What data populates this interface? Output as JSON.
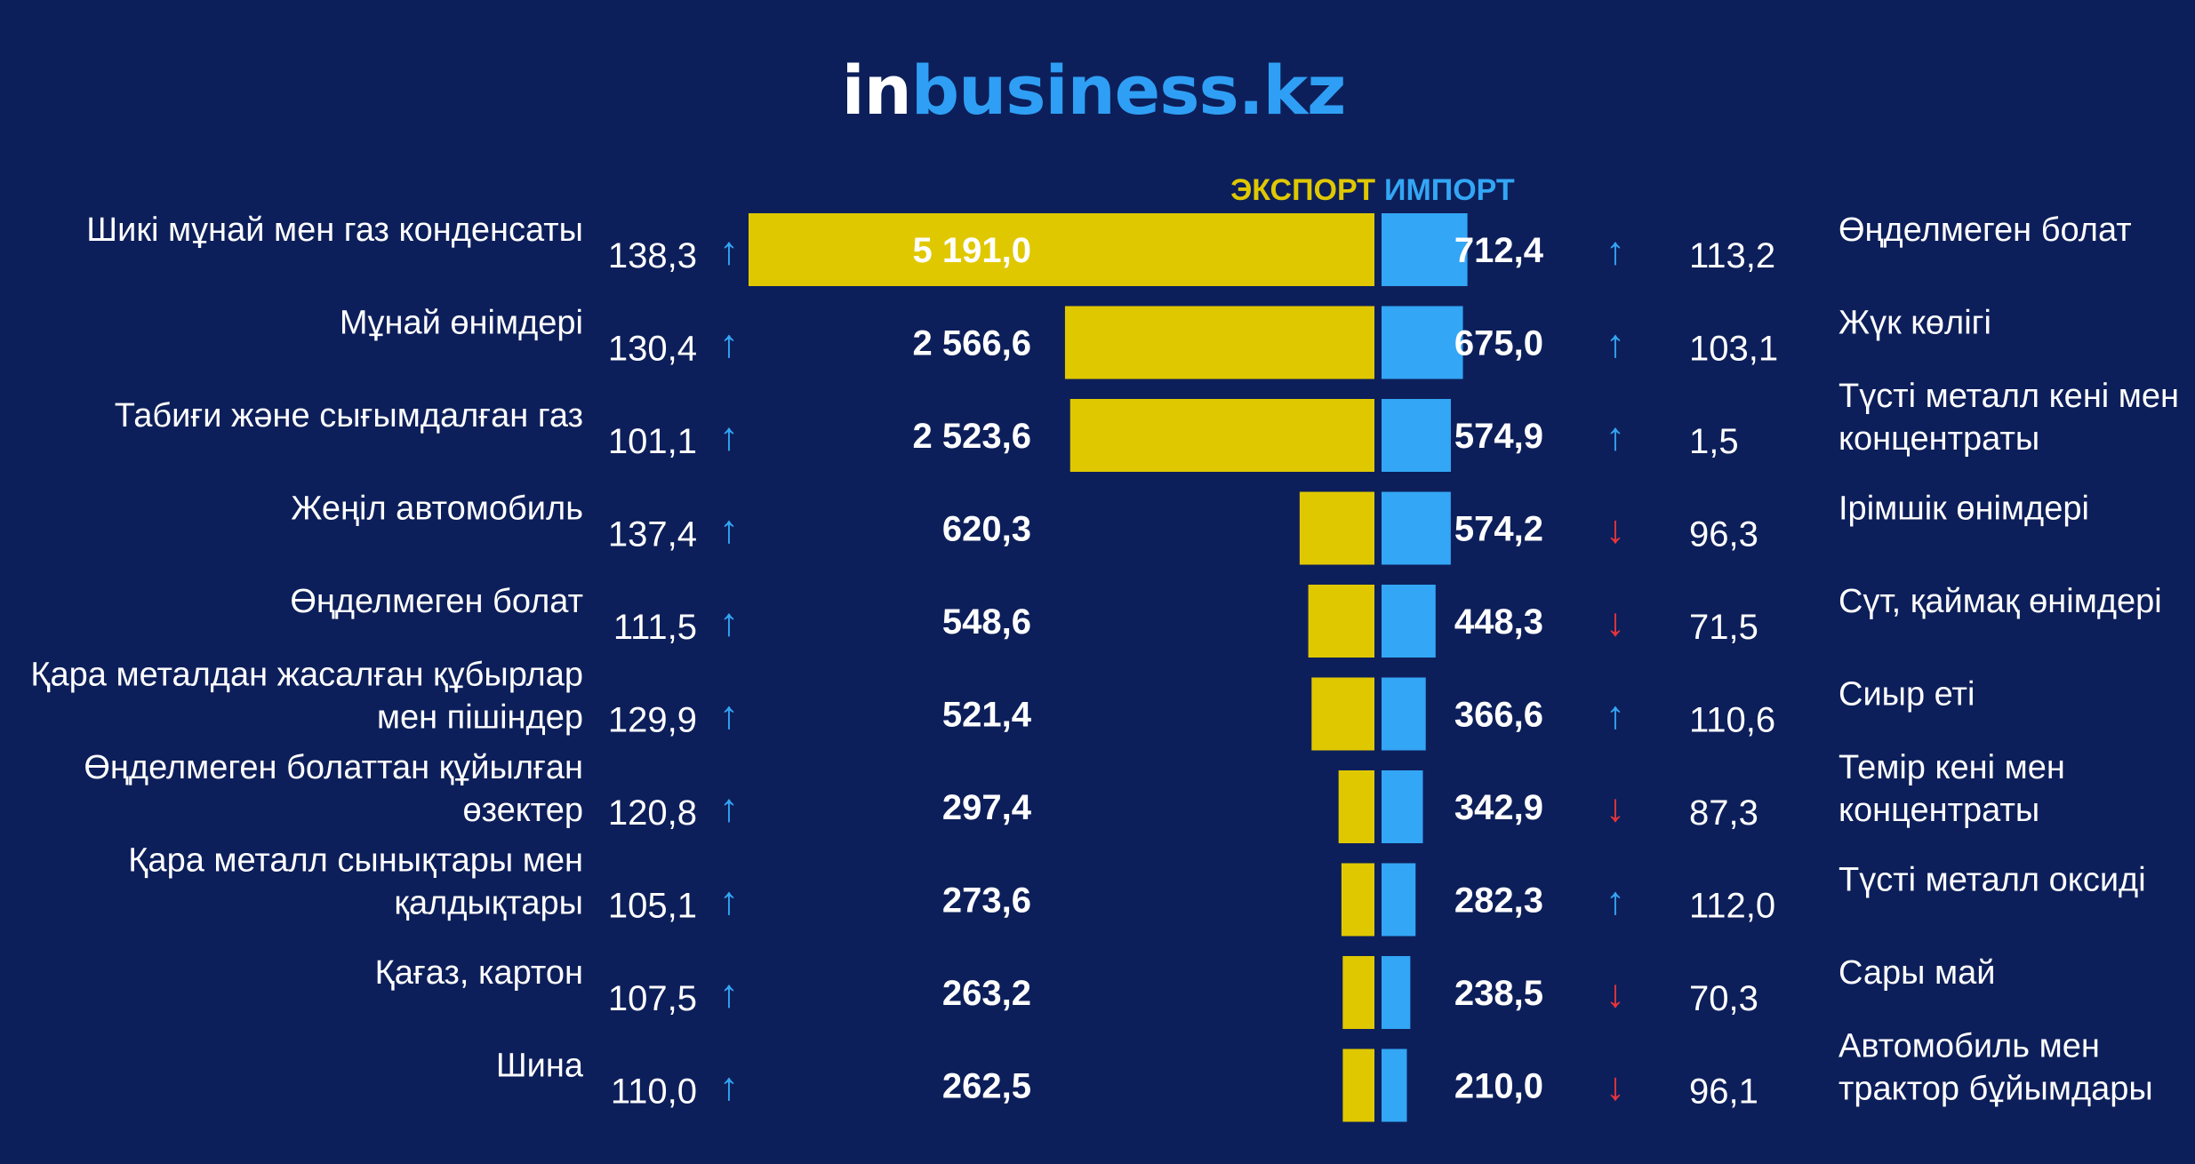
{
  "logo": {
    "part1": "in",
    "part2": "business.kz"
  },
  "colors": {
    "background": "#0d1f5a",
    "export": "#e0c800",
    "import": "#33a6f5",
    "up": "#33a6f5",
    "down": "#e8343a"
  },
  "chart_data": {
    "type": "bar",
    "series": [
      {
        "name": "ЭКСПОРТ",
        "values": [
          5191.0,
          2566.6,
          2523.6,
          620.3,
          548.6,
          521.4,
          297.4,
          273.6,
          263.2,
          262.5
        ]
      },
      {
        "name": "ИМПОРТ",
        "values": [
          712.4,
          675.0,
          574.9,
          574.2,
          448.3,
          366.6,
          342.9,
          282.3,
          238.5,
          210.0
        ]
      }
    ],
    "export_rows": [
      {
        "name": [
          "Шикі мұнай мен газ конденсаты"
        ],
        "pct": "138,3",
        "dir": "up",
        "value_label": "5 191,0"
      },
      {
        "name": [
          "Мұнай өнімдері"
        ],
        "pct": "130,4",
        "dir": "up",
        "value_label": "2 566,6"
      },
      {
        "name": [
          "Табиғи және сығымдалған газ"
        ],
        "pct": "101,1",
        "dir": "up",
        "value_label": "2 523,6"
      },
      {
        "name": [
          "Жеңіл автомобиль"
        ],
        "pct": "137,4",
        "dir": "up",
        "value_label": "620,3"
      },
      {
        "name": [
          "Өңделмеген болат"
        ],
        "pct": "111,5",
        "dir": "up",
        "value_label": "548,6"
      },
      {
        "name": [
          "Қара металдан жасалған құбырлар",
          "мен пішіндер"
        ],
        "pct": "129,9",
        "dir": "up",
        "value_label": "521,4"
      },
      {
        "name": [
          "Өңделмеген болаттан құйылған",
          "өзектер"
        ],
        "pct": "120,8",
        "dir": "up",
        "value_label": "297,4"
      },
      {
        "name": [
          "Қара металл сынықтары мен",
          "қалдықтары"
        ],
        "pct": "105,1",
        "dir": "up",
        "value_label": "273,6"
      },
      {
        "name": [
          "Қағаз, картон"
        ],
        "pct": "107,5",
        "dir": "up",
        "value_label": "263,2"
      },
      {
        "name": [
          "Шина"
        ],
        "pct": "110,0",
        "dir": "up",
        "value_label": "262,5"
      }
    ],
    "import_rows": [
      {
        "name": [
          "Өңделмеген болат"
        ],
        "pct": "113,2",
        "dir": "up",
        "value_label": "712,4"
      },
      {
        "name": [
          "Жүк көлігі"
        ],
        "pct": "103,1",
        "dir": "up",
        "value_label": "675,0"
      },
      {
        "name": [
          "Түсті металл кені мен",
          "концентраты"
        ],
        "pct": "1,5",
        "dir": "up",
        "value_label": "574,9"
      },
      {
        "name": [
          "Ірімшік өнімдері"
        ],
        "pct": "96,3",
        "dir": "down",
        "value_label": "574,2"
      },
      {
        "name": [
          "Сүт, қаймақ өнімдері"
        ],
        "pct": "71,5",
        "dir": "down",
        "value_label": "448,3"
      },
      {
        "name": [
          "Сиыр еті"
        ],
        "pct": "110,6",
        "dir": "up",
        "value_label": "366,6"
      },
      {
        "name": [
          "Темір кені мен",
          "концентраты"
        ],
        "pct": "87,3",
        "dir": "down",
        "value_label": "342,9"
      },
      {
        "name": [
          "Түсті металл оксиді"
        ],
        "pct": "112,0",
        "dir": "up",
        "value_label": "282,3"
      },
      {
        "name": [
          "Сары май"
        ],
        "pct": "70,3",
        "dir": "down",
        "value_label": "238,5"
      },
      {
        "name": [
          "Автомобиль мен",
          "трактор бұйымдары"
        ],
        "pct": "96,1",
        "dir": "down",
        "value_label": "210,0"
      }
    ]
  }
}
